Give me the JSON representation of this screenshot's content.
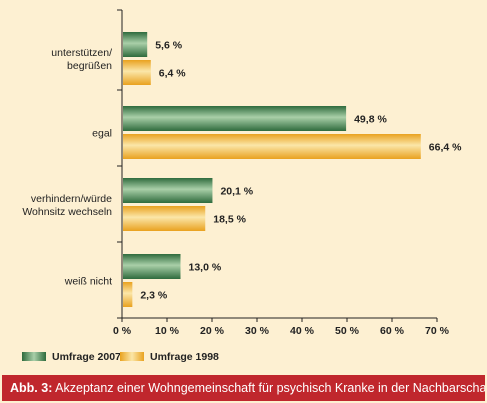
{
  "colors": {
    "background": "#fdf0d2",
    "series_2007": "#2f6b3d",
    "series_2007_light": "#a9cfa8",
    "series_1998": "#e9a21f",
    "series_1998_light": "#fbe6a8",
    "caption_bar": "#c0272d"
  },
  "caption": {
    "label": "Abb. 3:",
    "text": "Akzeptanz einer Wohngemeinschaft für psychisch Kranke in der Nachbarschaft"
  },
  "chart_data": {
    "type": "bar",
    "orientation": "horizontal",
    "categories": [
      [
        "unterstützen/",
        "begrüßen"
      ],
      [
        "egal"
      ],
      [
        "verhindern/würde",
        "Wohnsitz wechseln"
      ],
      [
        "weiß nicht"
      ]
    ],
    "series": [
      {
        "name": "Umfrage 2007",
        "values": [
          5.6,
          49.8,
          20.1,
          13.0
        ],
        "labels": [
          "5,6 %",
          "49,8 %",
          "20,1 %",
          "13,0 %"
        ]
      },
      {
        "name": "Umfrage 1998",
        "values": [
          6.4,
          66.4,
          18.5,
          2.3
        ],
        "labels": [
          "6,4 %",
          "66,4 %",
          "18,5 %",
          "2,3 %"
        ]
      }
    ],
    "xlim": [
      0,
      70
    ],
    "xticks": [
      0,
      10,
      20,
      30,
      40,
      50,
      60,
      70
    ],
    "xtick_labels": [
      "0 %",
      "10 %",
      "20 %",
      "30 %",
      "40 %",
      "50 %",
      "60 %",
      "70 %"
    ],
    "grid": false,
    "legend": "bottom-left"
  }
}
